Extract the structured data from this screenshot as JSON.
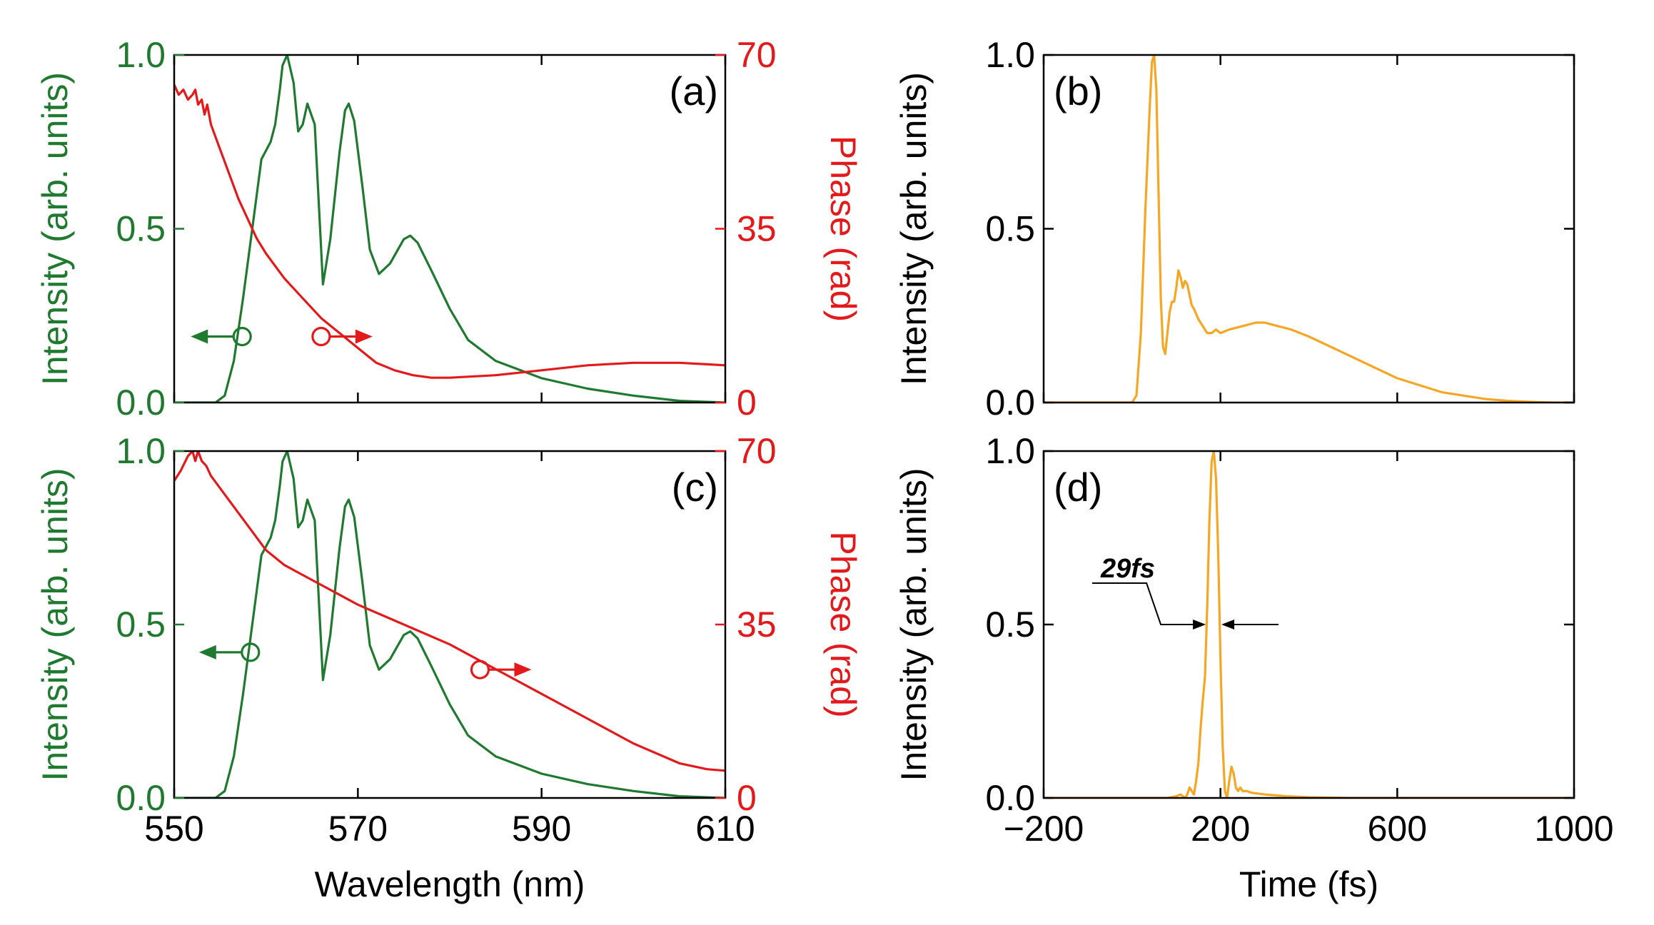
{
  "colors": {
    "intensity": "#1f7a30",
    "phase": "#e31a1c",
    "temporal": "#f5a623",
    "axis": "#000000"
  },
  "chart_data": [
    {
      "panel": "(a)",
      "type": "line",
      "xlabel": "Wavelength (nm)",
      "ylabel": "Intensity (arb. units)",
      "y2label": "Phase (rad)",
      "xlim": [
        550,
        610
      ],
      "ylim": [
        0,
        1
      ],
      "y2lim": [
        0,
        70
      ],
      "xticks": [
        550,
        570,
        590,
        610
      ],
      "yticks": [
        0.0,
        0.5,
        1.0
      ],
      "yticklabels": [
        "0.0",
        "0.5",
        "1.0"
      ],
      "y2ticks": [
        0,
        35,
        70
      ],
      "y2ticklabels": [
        "0",
        "35",
        "70"
      ],
      "show_xticklabels": false,
      "series": [
        {
          "name": "Intensity",
          "axis": "left",
          "color": "#1f7a30",
          "x": [
            550,
            553,
            554.5,
            555.5,
            556.5,
            557.5,
            558.5,
            559.5,
            560.5,
            561.0,
            561.5,
            561.8,
            562.3,
            563.0,
            563.5,
            564.0,
            564.5,
            565.3,
            566.2,
            567.0,
            568.0,
            568.6,
            569.0,
            569.6,
            570.5,
            571.3,
            572.3,
            573.5,
            575.0,
            575.7,
            576.5,
            578.0,
            580.0,
            582.0,
            585.0,
            590.0,
            595.0,
            600.0,
            605.0,
            610.0
          ],
          "y": [
            0,
            0,
            0,
            0.02,
            0.12,
            0.3,
            0.5,
            0.7,
            0.75,
            0.8,
            0.9,
            0.97,
            1.0,
            0.92,
            0.78,
            0.8,
            0.86,
            0.8,
            0.34,
            0.47,
            0.72,
            0.84,
            0.86,
            0.81,
            0.62,
            0.44,
            0.37,
            0.4,
            0.47,
            0.48,
            0.46,
            0.38,
            0.27,
            0.18,
            0.12,
            0.07,
            0.04,
            0.02,
            0.005,
            0.0
          ]
        },
        {
          "name": "Phase",
          "axis": "right",
          "color": "#e31a1c",
          "x": [
            550,
            550.5,
            551,
            551.5,
            552,
            552.3,
            552.6,
            553,
            553.3,
            553.6,
            554,
            555,
            556,
            557,
            558,
            559,
            560,
            562,
            564,
            566,
            568,
            570,
            572,
            574,
            576,
            578,
            580,
            585,
            590,
            595,
            600,
            605,
            608,
            610
          ],
          "y": [
            64,
            62,
            63,
            61,
            62,
            63,
            60,
            61,
            58,
            60,
            56,
            51,
            46,
            41,
            37,
            33,
            30,
            25,
            21,
            17,
            14,
            11,
            8,
            6.5,
            5.5,
            5,
            5,
            5.5,
            6.5,
            7.5,
            8,
            8,
            7.7,
            7.5
          ]
        }
      ],
      "annotations": [
        {
          "type": "arrow",
          "series": "Intensity",
          "x": 557.4,
          "y": 0.19,
          "direction": "left"
        },
        {
          "type": "arrow",
          "series": "Phase",
          "x": 566.0,
          "y": 13.3,
          "direction": "right"
        }
      ]
    },
    {
      "panel": "(b)",
      "type": "line",
      "xlabel": "Time (fs)",
      "ylabel": "Intensity (arb. units)",
      "xlim": [
        -200,
        1000
      ],
      "ylim": [
        0,
        1
      ],
      "xticks": [
        -200,
        200,
        600,
        1000
      ],
      "yticks": [
        0.0,
        0.5,
        1.0
      ],
      "yticklabels": [
        "0.0",
        "0.5",
        "1.0"
      ],
      "show_xticklabels": false,
      "series": [
        {
          "name": "Temporal intensity",
          "color": "#f5a623",
          "x": [
            -200,
            0,
            10,
            20,
            30,
            40,
            45,
            50,
            55,
            60,
            65,
            70,
            75,
            80,
            85,
            90,
            95,
            100,
            105,
            110,
            115,
            120,
            125,
            130,
            135,
            140,
            150,
            160,
            170,
            180,
            190,
            200,
            220,
            250,
            280,
            300,
            330,
            360,
            400,
            450,
            500,
            550,
            600,
            650,
            700,
            750,
            800,
            850,
            900,
            950,
            1000
          ],
          "y": [
            0,
            0,
            0.02,
            0.2,
            0.55,
            0.85,
            0.98,
            1.0,
            0.9,
            0.6,
            0.3,
            0.16,
            0.14,
            0.2,
            0.26,
            0.29,
            0.29,
            0.33,
            0.38,
            0.36,
            0.33,
            0.35,
            0.34,
            0.31,
            0.28,
            0.27,
            0.24,
            0.22,
            0.2,
            0.2,
            0.21,
            0.2,
            0.21,
            0.22,
            0.23,
            0.23,
            0.22,
            0.21,
            0.19,
            0.16,
            0.13,
            0.1,
            0.07,
            0.05,
            0.03,
            0.02,
            0.01,
            0.005,
            0.002,
            0.0,
            0.0
          ]
        }
      ],
      "annotations": []
    },
    {
      "panel": "(c)",
      "type": "line",
      "xlabel": "Wavelength (nm)",
      "ylabel": "Intensity (arb. units)",
      "y2label": "Phase (rad)",
      "xlim": [
        550,
        610
      ],
      "ylim": [
        0,
        1
      ],
      "y2lim": [
        0,
        70
      ],
      "xticks": [
        550,
        570,
        590,
        610
      ],
      "xticklabels": [
        "550",
        "570",
        "590",
        "610"
      ],
      "yticks": [
        0.0,
        0.5,
        1.0
      ],
      "yticklabels": [
        "0.0",
        "0.5",
        "1.0"
      ],
      "y2ticks": [
        0,
        35,
        70
      ],
      "y2ticklabels": [
        "0",
        "35",
        "70"
      ],
      "show_xticklabels": true,
      "series": [
        {
          "name": "Intensity",
          "axis": "left",
          "color": "#1f7a30",
          "x": [
            550,
            553,
            554.5,
            555.5,
            556.5,
            557.5,
            558.5,
            559.5,
            560.5,
            561.0,
            561.5,
            561.8,
            562.3,
            563.0,
            563.5,
            564.0,
            564.5,
            565.3,
            566.2,
            567.0,
            568.0,
            568.6,
            569.0,
            569.6,
            570.5,
            571.3,
            572.3,
            573.5,
            575.0,
            575.7,
            576.5,
            578.0,
            580.0,
            582.0,
            585.0,
            590.0,
            595.0,
            600.0,
            605.0,
            610.0
          ],
          "y": [
            0,
            0,
            0,
            0.02,
            0.12,
            0.3,
            0.5,
            0.7,
            0.75,
            0.8,
            0.9,
            0.97,
            1.0,
            0.92,
            0.78,
            0.8,
            0.86,
            0.8,
            0.34,
            0.47,
            0.72,
            0.84,
            0.86,
            0.81,
            0.62,
            0.44,
            0.37,
            0.4,
            0.47,
            0.48,
            0.46,
            0.38,
            0.27,
            0.18,
            0.12,
            0.07,
            0.04,
            0.02,
            0.005,
            0.0
          ]
        },
        {
          "name": "Phase",
          "axis": "right",
          "color": "#e31a1c",
          "x": [
            550,
            550.7,
            551.5,
            552,
            552.3,
            552.6,
            553,
            553.5,
            554,
            556,
            558,
            560,
            562,
            564,
            566,
            568,
            570,
            575,
            580,
            585,
            590,
            595,
            600,
            605,
            608,
            610
          ],
          "y": [
            64,
            66,
            69,
            70,
            68,
            70,
            68,
            67,
            65,
            60,
            55,
            50,
            47,
            45,
            43,
            41,
            39,
            35,
            31,
            26,
            21,
            16,
            11,
            7,
            5.8,
            5.5
          ]
        }
      ],
      "annotations": [
        {
          "type": "arrow",
          "series": "Intensity",
          "x": 558.3,
          "y": 0.42,
          "direction": "left"
        },
        {
          "type": "arrow",
          "series": "Phase",
          "x": 583.3,
          "y": 25.9,
          "direction": "right"
        }
      ]
    },
    {
      "panel": "(d)",
      "type": "line",
      "xlabel": "Time (fs)",
      "ylabel": "Intensity (arb. units)",
      "xlim": [
        -200,
        1000
      ],
      "ylim": [
        0,
        1
      ],
      "xticks": [
        -200,
        200,
        600,
        1000
      ],
      "xticklabels": [
        "−200",
        "200",
        "600",
        "1000"
      ],
      "yticks": [
        0.0,
        0.5,
        1.0
      ],
      "yticklabels": [
        "0.0",
        "0.5",
        "1.0"
      ],
      "show_xticklabels": true,
      "series": [
        {
          "name": "Temporal intensity",
          "color": "#f5a623",
          "x": [
            -200,
            80,
            100,
            110,
            115,
            120,
            125,
            130,
            135,
            140,
            145,
            150,
            155,
            160,
            165,
            170,
            175,
            180,
            185,
            190,
            195,
            200,
            205,
            210,
            215,
            220,
            225,
            230,
            235,
            240,
            245,
            250,
            260,
            270,
            300,
            350,
            400,
            500,
            1000
          ],
          "y": [
            0,
            0,
            0.005,
            0.01,
            0.005,
            0.0,
            0.01,
            0.03,
            0.02,
            0.01,
            0.05,
            0.1,
            0.2,
            0.28,
            0.35,
            0.55,
            0.8,
            0.97,
            1.0,
            0.92,
            0.7,
            0.4,
            0.15,
            0.02,
            0.0,
            0.05,
            0.09,
            0.07,
            0.03,
            0.02,
            0.03,
            0.02,
            0.02,
            0.015,
            0.01,
            0.005,
            0.002,
            0.0,
            0.0
          ]
        }
      ],
      "annotations": [
        {
          "type": "fwhm",
          "label": "29fs",
          "x_left": 170,
          "x_right": 199,
          "y": 0.5
        }
      ]
    }
  ]
}
